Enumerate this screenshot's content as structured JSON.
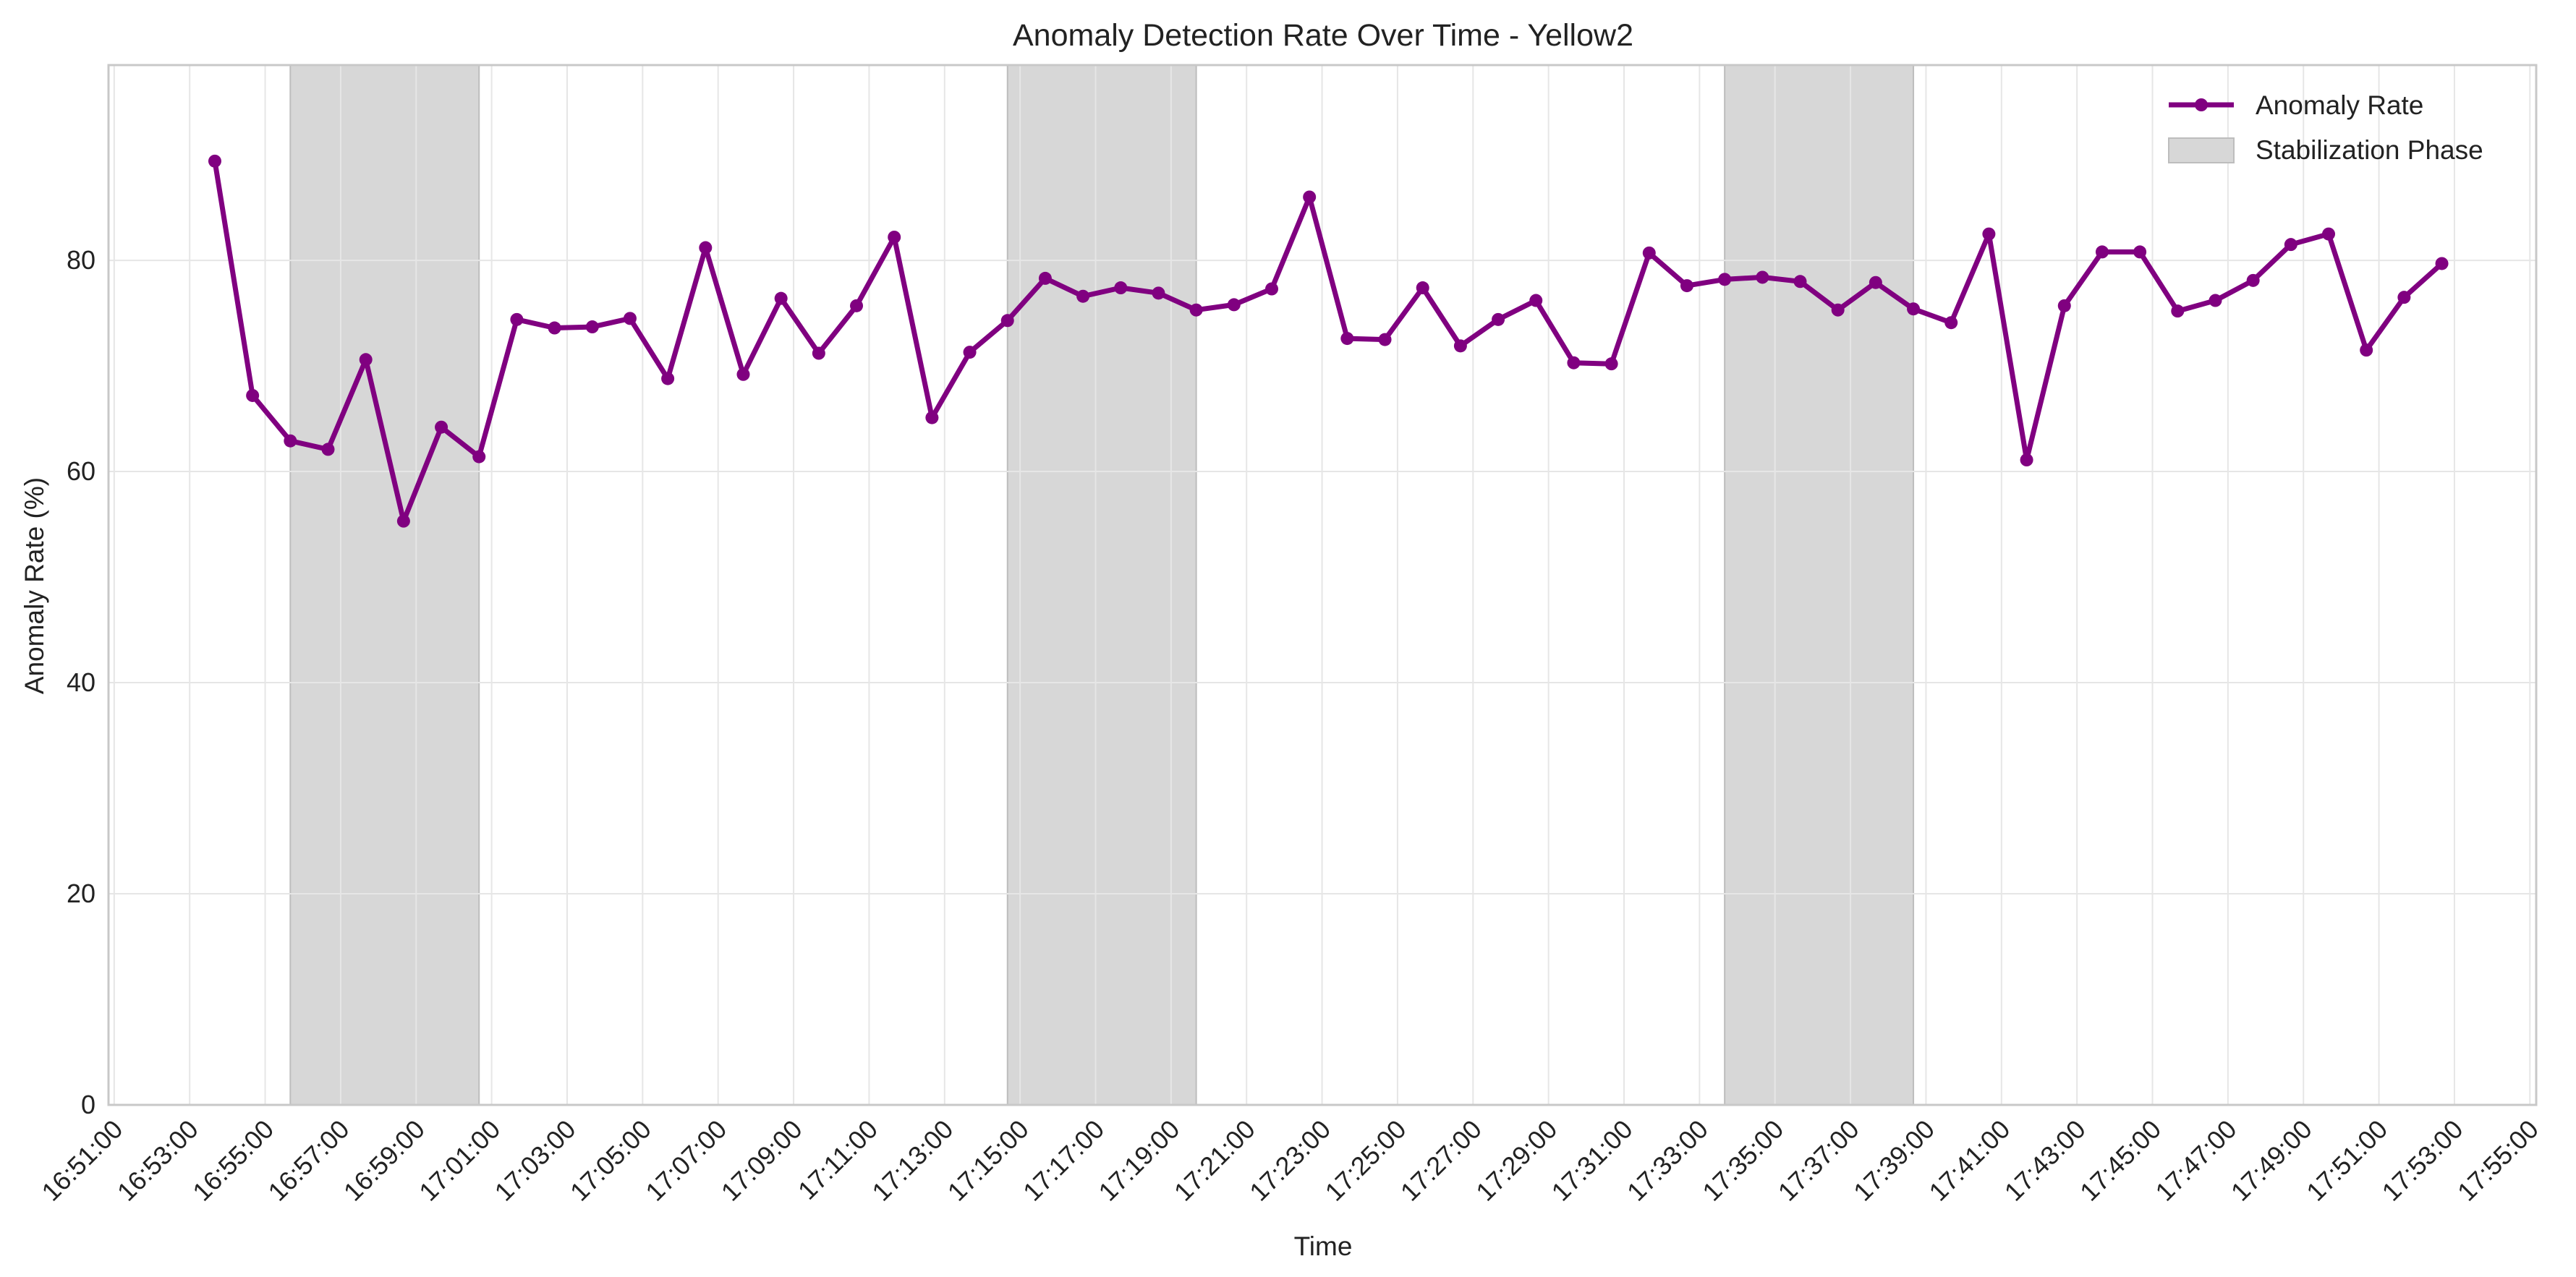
{
  "chart_data": {
    "type": "line",
    "title": "Anomaly Detection Rate Over Time - Yellow2",
    "xlabel": "Time",
    "ylabel": "Anomaly Rate (%)",
    "x_tick_labels": [
      "16:51:00",
      "16:53:00",
      "16:55:00",
      "16:57:00",
      "16:59:00",
      "17:01:00",
      "17:03:00",
      "17:05:00",
      "17:07:00",
      "17:09:00",
      "17:11:00",
      "17:13:00",
      "17:15:00",
      "17:17:00",
      "17:19:00",
      "17:21:00",
      "17:23:00",
      "17:25:00",
      "17:27:00",
      "17:29:00",
      "17:31:00",
      "17:33:00",
      "17:35:00",
      "17:37:00",
      "17:39:00",
      "17:41:00",
      "17:43:00",
      "17:45:00",
      "17:47:00",
      "17:49:00",
      "17:51:00",
      "17:53:00",
      "17:55:00"
    ],
    "y_ticks": [
      0,
      20,
      40,
      60,
      80
    ],
    "xlim": [
      "16:50:51",
      "17:55:10"
    ],
    "ylim": [
      0,
      98.5
    ],
    "grid": true,
    "legend_position": "top-right",
    "line_color": "#800080",
    "shade_color": "#d7d7d7",
    "series": [
      {
        "name": "Anomaly Rate",
        "x": [
          "16:53:40",
          "16:54:40",
          "16:55:40",
          "16:56:40",
          "16:57:40",
          "16:58:40",
          "16:59:40",
          "17:00:40",
          "17:01:40",
          "17:02:40",
          "17:03:40",
          "17:04:40",
          "17:05:40",
          "17:06:40",
          "17:07:40",
          "17:08:40",
          "17:09:40",
          "17:10:40",
          "17:11:40",
          "17:12:40",
          "17:13:40",
          "17:14:40",
          "17:15:40",
          "17:16:40",
          "17:17:40",
          "17:18:40",
          "17:19:40",
          "17:20:40",
          "17:21:40",
          "17:22:40",
          "17:23:40",
          "17:24:40",
          "17:25:40",
          "17:26:40",
          "17:27:40",
          "17:28:40",
          "17:29:40",
          "17:30:40",
          "17:31:40",
          "17:32:40",
          "17:33:40",
          "17:34:40",
          "17:35:40",
          "17:36:40",
          "17:37:40",
          "17:38:40",
          "17:39:40",
          "17:40:40",
          "17:41:40",
          "17:42:40",
          "17:43:40",
          "17:44:40",
          "17:45:40",
          "17:46:40",
          "17:47:40",
          "17:48:40",
          "17:49:40",
          "17:50:40",
          "17:51:40",
          "17:52:40"
        ],
        "values": [
          89.4,
          67.2,
          62.9,
          62.1,
          70.6,
          55.3,
          64.2,
          61.4,
          74.4,
          73.6,
          73.7,
          74.5,
          68.8,
          81.2,
          69.2,
          76.4,
          71.2,
          75.7,
          82.2,
          65.1,
          71.3,
          74.3,
          78.3,
          76.6,
          77.4,
          76.9,
          75.3,
          75.8,
          77.3,
          86.0,
          72.6,
          72.5,
          77.4,
          71.9,
          74.4,
          76.2,
          70.3,
          70.2,
          80.7,
          77.6,
          78.2,
          78.4,
          78.0,
          75.3,
          77.9,
          75.4,
          74.1,
          82.5,
          61.1,
          75.7,
          80.8,
          80.8,
          75.2,
          76.2,
          78.1,
          81.5,
          82.5,
          71.5,
          76.5,
          79.7
        ]
      }
    ],
    "stabilization_phases": [
      {
        "start": "16:55:40",
        "end": "17:00:40"
      },
      {
        "start": "17:14:40",
        "end": "17:19:40"
      },
      {
        "start": "17:33:40",
        "end": "17:38:40"
      }
    ],
    "legend": {
      "line_label": "Anomaly Rate",
      "shade_label": "Stabilization Phase"
    }
  }
}
